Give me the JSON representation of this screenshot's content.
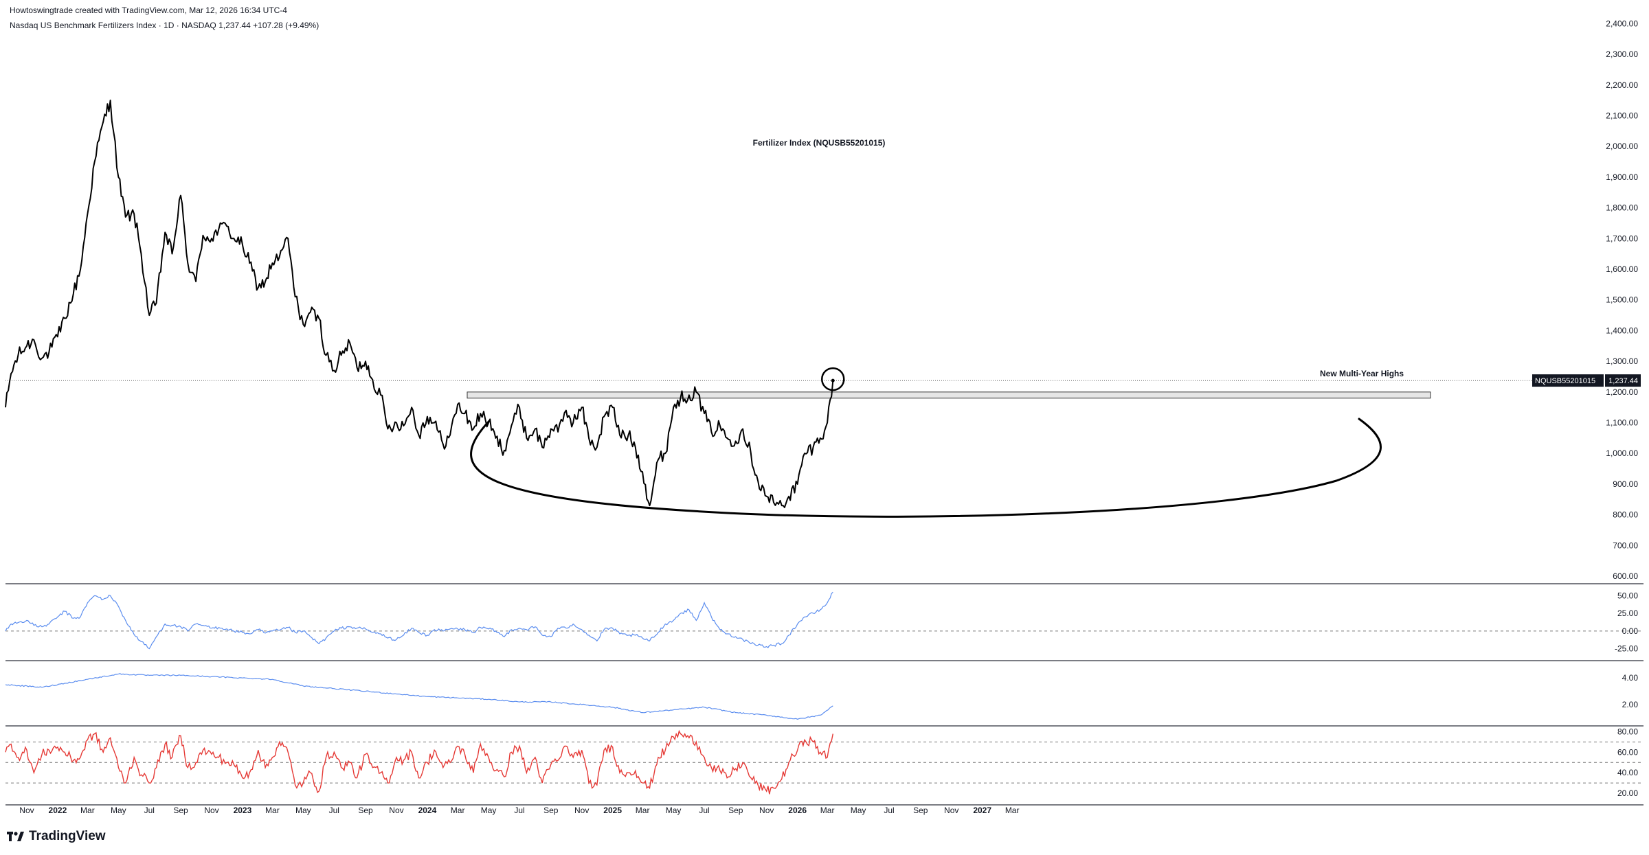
{
  "header": {
    "credit": "Howtoswingtrade created with TradingView.com, Mar 12, 2026 16:34 UTC-4",
    "symbol_line": "Nasdaq US Benchmark Fertilizers Index · 1D · NASDAQ  1,237.44  +107.28 (+9.49%)"
  },
  "brand": {
    "name": "TradingView",
    "icon": "tradingview-logo-icon"
  },
  "colors": {
    "price_line": "#000000",
    "macd_line": "#5b8def",
    "atr_line": "#5b8def",
    "rsi_line": "#e53935",
    "axis_text": "#131722"
  },
  "chart_data": {
    "type": "line",
    "title": "Fertilizer Index (NQUSB55201015)",
    "annotation": "New Multi-Year Highs",
    "price_label": {
      "symbol": "NQUSB55201015",
      "value": "1,237.44"
    },
    "resistance_zone": [
      1180,
      1200
    ],
    "x_ticks": [
      "Nov",
      "2022",
      "Mar",
      "May",
      "Jul",
      "Sep",
      "Nov",
      "2023",
      "Mar",
      "May",
      "Jul",
      "Sep",
      "Nov",
      "2024",
      "Mar",
      "May",
      "Jul",
      "Sep",
      "Nov",
      "2025",
      "Mar",
      "May",
      "Jul",
      "Sep",
      "Nov",
      "2026",
      "Mar",
      "May",
      "Jul",
      "Sep",
      "Nov",
      "2027",
      "Mar"
    ],
    "panels": [
      {
        "name": "price",
        "ylim": [
          580,
          2450
        ],
        "y_ticks": [
          "2,400.00",
          "2,300.00",
          "2,200.00",
          "2,100.00",
          "2,000.00",
          "1,900.00",
          "1,800.00",
          "1,700.00",
          "1,600.00",
          "1,500.00",
          "1,400.00",
          "1,300.00",
          "1,200.00",
          "1,100.00",
          "1,000.00",
          "900.00",
          "800.00",
          "700.00",
          "600.00"
        ],
        "x": [
          "2021-09-20",
          "2021-10-01",
          "2021-10-15",
          "2021-11-01",
          "2021-11-15",
          "2021-12-01",
          "2021-12-15",
          "2022-01-01",
          "2022-01-15",
          "2022-02-01",
          "2022-02-15",
          "2022-03-01",
          "2022-03-15",
          "2022-04-01",
          "2022-04-15",
          "2022-05-01",
          "2022-05-15",
          "2022-06-01",
          "2022-06-15",
          "2022-07-01",
          "2022-07-15",
          "2022-08-01",
          "2022-08-15",
          "2022-09-01",
          "2022-09-15",
          "2022-10-01",
          "2022-10-15",
          "2022-11-01",
          "2022-11-15",
          "2022-12-01",
          "2022-12-15",
          "2023-01-01",
          "2023-01-15",
          "2023-02-01",
          "2023-02-15",
          "2023-03-01",
          "2023-03-15",
          "2023-04-01",
          "2023-04-15",
          "2023-05-01",
          "2023-05-15",
          "2023-06-01",
          "2023-06-15",
          "2023-07-01",
          "2023-07-15",
          "2023-08-01",
          "2023-08-15",
          "2023-09-01",
          "2023-09-15",
          "2023-10-01",
          "2023-10-15",
          "2023-11-01",
          "2023-11-15",
          "2023-12-01",
          "2023-12-15",
          "2024-01-01",
          "2024-01-15",
          "2024-02-01",
          "2024-02-15",
          "2024-03-01",
          "2024-03-15",
          "2024-04-01",
          "2024-04-15",
          "2024-05-01",
          "2024-05-15",
          "2024-06-01",
          "2024-06-15",
          "2024-07-01",
          "2024-07-15",
          "2024-08-01",
          "2024-08-15",
          "2024-09-01",
          "2024-09-15",
          "2024-10-01",
          "2024-10-15",
          "2024-11-01",
          "2024-11-15",
          "2024-12-01",
          "2024-12-15",
          "2025-01-01",
          "2025-01-15",
          "2025-02-01",
          "2025-02-15",
          "2025-03-01",
          "2025-03-15",
          "2025-04-01",
          "2025-04-15",
          "2025-05-01",
          "2025-05-15",
          "2025-06-01",
          "2025-06-15",
          "2025-07-01",
          "2025-07-15",
          "2025-08-01",
          "2025-08-15",
          "2025-09-01",
          "2025-09-15",
          "2025-10-01",
          "2025-10-15",
          "2025-11-01",
          "2025-11-15",
          "2025-12-01",
          "2025-12-15",
          "2026-01-01",
          "2026-01-15",
          "2026-02-01",
          "2026-02-15",
          "2026-03-01",
          "2026-03-12"
        ],
        "series": [
          {
            "values": [
              1150,
              1260,
              1320,
              1350,
              1370,
              1310,
              1330,
              1380,
              1440,
              1520,
              1600,
              1780,
              1950,
              2080,
              2150,
              1900,
              1770,
              1780,
              1650,
              1450,
              1490,
              1720,
              1650,
              1840,
              1620,
              1560,
              1710,
              1700,
              1730,
              1740,
              1700,
              1680,
              1620,
              1540,
              1560,
              1620,
              1640,
              1700,
              1510,
              1420,
              1460,
              1440,
              1320,
              1270,
              1320,
              1360,
              1280,
              1300,
              1240,
              1190,
              1080,
              1100,
              1090,
              1150,
              1060,
              1120,
              1100,
              1030,
              1060,
              1160,
              1130,
              1080,
              1130,
              1100,
              1050,
              1010,
              1090,
              1150,
              1050,
              1080,
              1020,
              1080,
              1070,
              1140,
              1100,
              1150,
              1050,
              1020,
              1120,
              1150,
              1060,
              1060,
              1020,
              940,
              830,
              980,
              1000,
              1150,
              1180,
              1190,
              1200,
              1130,
              1070,
              1090,
              1050,
              1040,
              1080,
              1000,
              910,
              860,
              840,
              830,
              860,
              900,
              1000,
              1020,
              1050,
              1100,
              1237.44
            ]
          }
        ]
      },
      {
        "name": "macd",
        "ylim": [
          -40,
          65
        ],
        "y_ticks": [
          "50.00",
          "25.00",
          "0.00",
          "-25.00"
        ],
        "dashed_level": 0,
        "x": [
          "2021-09-20",
          "2021-10-01",
          "2021-10-15",
          "2021-11-01",
          "2021-11-15",
          "2021-12-01",
          "2021-12-15",
          "2022-01-01",
          "2022-01-15",
          "2022-02-01",
          "2022-02-15",
          "2022-03-01",
          "2022-03-15",
          "2022-04-01",
          "2022-04-15",
          "2022-05-01",
          "2022-05-15",
          "2022-06-01",
          "2022-06-15",
          "2022-07-01",
          "2022-07-15",
          "2022-08-01",
          "2022-08-15",
          "2022-09-01",
          "2022-09-15",
          "2022-10-01",
          "2022-10-15",
          "2022-11-01",
          "2022-11-15",
          "2022-12-01",
          "2022-12-15",
          "2023-01-01",
          "2023-01-15",
          "2023-02-01",
          "2023-02-15",
          "2023-03-01",
          "2023-03-15",
          "2023-04-01",
          "2023-04-15",
          "2023-05-01",
          "2023-05-15",
          "2023-06-01",
          "2023-06-15",
          "2023-07-01",
          "2023-07-15",
          "2023-08-01",
          "2023-08-15",
          "2023-09-01",
          "2023-09-15",
          "2023-10-01",
          "2023-10-15",
          "2023-11-01",
          "2023-11-15",
          "2023-12-01",
          "2023-12-15",
          "2024-01-01",
          "2024-01-15",
          "2024-02-01",
          "2024-02-15",
          "2024-03-01",
          "2024-03-15",
          "2024-04-01",
          "2024-04-15",
          "2024-05-01",
          "2024-05-15",
          "2024-06-01",
          "2024-06-15",
          "2024-07-01",
          "2024-07-15",
          "2024-08-01",
          "2024-08-15",
          "2024-09-01",
          "2024-09-15",
          "2024-10-01",
          "2024-10-15",
          "2024-11-01",
          "2024-11-15",
          "2024-12-01",
          "2024-12-15",
          "2025-01-01",
          "2025-01-15",
          "2025-02-01",
          "2025-02-15",
          "2025-03-01",
          "2025-03-15",
          "2025-04-01",
          "2025-04-15",
          "2025-05-01",
          "2025-05-15",
          "2025-06-01",
          "2025-06-15",
          "2025-07-01",
          "2025-07-15",
          "2025-08-01",
          "2025-08-15",
          "2025-09-01",
          "2025-09-15",
          "2025-10-01",
          "2025-10-15",
          "2025-11-01",
          "2025-11-15",
          "2025-12-01",
          "2025-12-15",
          "2026-01-01",
          "2026-01-15",
          "2026-02-01",
          "2026-02-15",
          "2026-03-01",
          "2026-03-12"
        ],
        "series": [
          {
            "values": [
              0,
              10,
              12,
              15,
              8,
              6,
              10,
              20,
              28,
              18,
              20,
              40,
              50,
              45,
              50,
              35,
              15,
              -5,
              -15,
              -25,
              -8,
              10,
              8,
              6,
              0,
              10,
              8,
              4,
              5,
              3,
              0,
              -2,
              -4,
              2,
              -3,
              0,
              1,
              5,
              -2,
              0,
              -8,
              -18,
              -10,
              0,
              4,
              6,
              4,
              3,
              -2,
              -4,
              -10,
              -12,
              -6,
              4,
              -2,
              -6,
              2,
              0,
              3,
              3,
              2,
              -2,
              5,
              3,
              0,
              -8,
              2,
              4,
              2,
              6,
              -6,
              -8,
              4,
              4,
              10,
              2,
              -6,
              -14,
              2,
              4,
              -4,
              -6,
              -6,
              -10,
              -14,
              -2,
              10,
              15,
              25,
              30,
              15,
              40,
              20,
              2,
              -4,
              -8,
              -12,
              -18,
              -20,
              -22,
              -20,
              -18,
              -6,
              10,
              20,
              25,
              30,
              40,
              55
            ]
          }
        ]
      },
      {
        "name": "atr",
        "ylim": [
          0.5,
          5.2
        ],
        "y_ticks": [
          "4.00",
          "2.00"
        ],
        "x": [
          "2021-09-20",
          "2021-12-01",
          "2022-03-01",
          "2022-05-01",
          "2022-07-01",
          "2022-09-01",
          "2022-11-01",
          "2023-01-01",
          "2023-03-01",
          "2023-05-01",
          "2023-07-01",
          "2023-09-01",
          "2023-11-01",
          "2024-01-01",
          "2024-03-01",
          "2024-05-01",
          "2024-07-01",
          "2024-09-01",
          "2024-11-01",
          "2025-01-01",
          "2025-03-01",
          "2025-05-01",
          "2025-07-01",
          "2025-09-01",
          "2025-11-01",
          "2026-01-01",
          "2026-02-15",
          "2026-03-12"
        ],
        "series": [
          {
            "values": [
              3.5,
              3.3,
              3.9,
              4.3,
              4.2,
              4.2,
              4.1,
              4.0,
              3.9,
              3.4,
              3.2,
              3.0,
              2.8,
              2.6,
              2.5,
              2.4,
              2.2,
              2.2,
              2.0,
              1.8,
              1.4,
              1.6,
              1.8,
              1.4,
              1.2,
              0.9,
              1.2,
              1.9
            ]
          }
        ]
      },
      {
        "name": "rsi",
        "ylim": [
          10,
          85
        ],
        "y_ticks": [
          "80.00",
          "60.00",
          "40.00",
          "20.00"
        ],
        "dashed_levels": [
          70,
          50,
          30
        ],
        "x": [
          "2021-09-20",
          "2021-10-01",
          "2021-10-15",
          "2021-11-01",
          "2021-11-15",
          "2021-12-01",
          "2021-12-15",
          "2022-01-01",
          "2022-01-15",
          "2022-02-01",
          "2022-02-15",
          "2022-03-01",
          "2022-03-15",
          "2022-04-01",
          "2022-04-15",
          "2022-05-01",
          "2022-05-15",
          "2022-06-01",
          "2022-06-15",
          "2022-07-01",
          "2022-07-15",
          "2022-08-01",
          "2022-08-15",
          "2022-09-01",
          "2022-09-15",
          "2022-10-01",
          "2022-10-15",
          "2022-11-01",
          "2022-11-15",
          "2022-12-01",
          "2022-12-15",
          "2023-01-01",
          "2023-01-15",
          "2023-02-01",
          "2023-02-15",
          "2023-03-01",
          "2023-03-15",
          "2023-04-01",
          "2023-04-15",
          "2023-05-01",
          "2023-05-15",
          "2023-06-01",
          "2023-06-15",
          "2023-07-01",
          "2023-07-15",
          "2023-08-01",
          "2023-08-15",
          "2023-09-01",
          "2023-09-15",
          "2023-10-01",
          "2023-10-15",
          "2023-11-01",
          "2023-11-15",
          "2023-12-01",
          "2023-12-15",
          "2024-01-01",
          "2024-01-15",
          "2024-02-01",
          "2024-02-15",
          "2024-03-01",
          "2024-03-15",
          "2024-04-01",
          "2024-04-15",
          "2024-05-01",
          "2024-05-15",
          "2024-06-01",
          "2024-06-15",
          "2024-07-01",
          "2024-07-15",
          "2024-08-01",
          "2024-08-15",
          "2024-09-01",
          "2024-09-15",
          "2024-10-01",
          "2024-10-15",
          "2024-11-01",
          "2024-11-15",
          "2024-12-01",
          "2024-12-15",
          "2025-01-01",
          "2025-01-15",
          "2025-02-01",
          "2025-02-15",
          "2025-03-01",
          "2025-03-15",
          "2025-04-01",
          "2025-04-15",
          "2025-05-01",
          "2025-05-15",
          "2025-06-01",
          "2025-06-15",
          "2025-07-01",
          "2025-07-15",
          "2025-08-01",
          "2025-08-15",
          "2025-09-01",
          "2025-09-15",
          "2025-10-01",
          "2025-10-15",
          "2025-11-01",
          "2025-11-15",
          "2025-12-01",
          "2025-12-15",
          "2026-01-01",
          "2026-01-15",
          "2026-02-01",
          "2026-02-15",
          "2026-03-01",
          "2026-03-12"
        ],
        "series": [
          {
            "values": [
              60,
              68,
              55,
              62,
              40,
              58,
              62,
              65,
              60,
              52,
              55,
              72,
              78,
              60,
              74,
              45,
              30,
              55,
              38,
              30,
              45,
              68,
              55,
              76,
              45,
              50,
              62,
              58,
              55,
              50,
              48,
              35,
              40,
              62,
              45,
              55,
              70,
              60,
              28,
              30,
              40,
              22,
              55,
              60,
              45,
              50,
              35,
              58,
              45,
              40,
              30,
              55,
              52,
              60,
              35,
              50,
              62,
              45,
              50,
              66,
              58,
              40,
              68,
              55,
              42,
              36,
              60,
              66,
              40,
              55,
              30,
              48,
              52,
              66,
              55,
              62,
              30,
              28,
              62,
              65,
              40,
              40,
              42,
              30,
              25,
              55,
              62,
              75,
              78,
              74,
              70,
              55,
              45,
              42,
              35,
              44,
              50,
              35,
              28,
              22,
              25,
              34,
              50,
              62,
              72,
              70,
              60,
              55,
              78
            ]
          }
        ]
      }
    ]
  }
}
